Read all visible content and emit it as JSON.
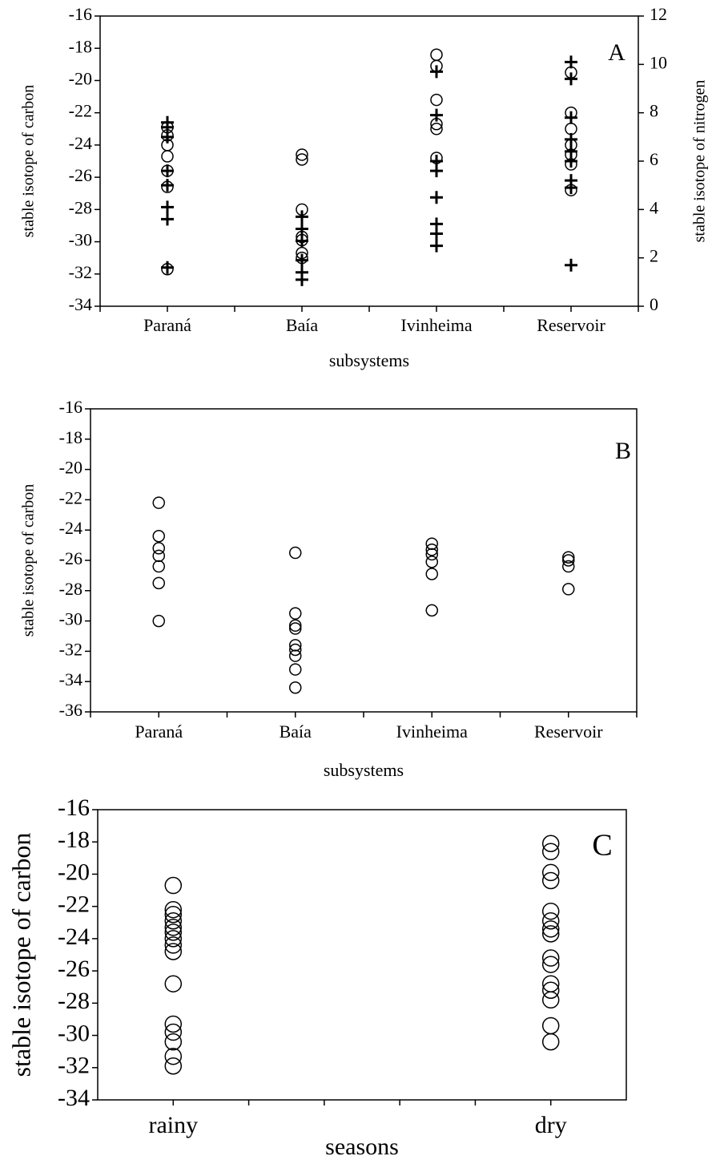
{
  "chart_data": [
    {
      "type": "strip",
      "annotation": "A",
      "xlabel": "subsystems",
      "ylabel": "stable isotope of carbon",
      "y2label": "stable isotope of nitrogen",
      "categories": [
        "Paraná",
        "Baía",
        "Ivinheima",
        "Reservoir"
      ],
      "series": [
        {
          "marker": "circle",
          "color": "#000000",
          "values": [
            [
              -22.9,
              -23.4,
              -24.0,
              -24.7,
              -25.6,
              -26.6,
              -31.7
            ],
            [
              -24.6,
              -24.9,
              -28.0,
              -29.7,
              -29.9,
              -30.7,
              -31.0
            ],
            [
              -18.4,
              -19.1,
              -21.2,
              -22.7,
              -23.0,
              -24.8
            ],
            [
              -19.5,
              -22.0,
              -23.0,
              -24.0,
              -24.6,
              -25.2,
              -26.8
            ]
          ]
        },
        {
          "marker": "plus",
          "color": "#000000",
          "axis": "y2",
          "values": [
            [
              7.6,
              7.4,
              7.0,
              5.6,
              5.0,
              4.1,
              3.6,
              1.6
            ],
            [
              3.7,
              3.2,
              2.7,
              1.9,
              1.4,
              1.1
            ],
            [
              9.7,
              7.9,
              6.0,
              5.6,
              4.5,
              3.4,
              3.0,
              2.5
            ],
            [
              10.1,
              9.4,
              7.8,
              6.9,
              6.4,
              6.0,
              5.2,
              4.9,
              1.7
            ]
          ]
        }
      ],
      "ylim": [
        -34,
        -16
      ],
      "yticks": [
        -34,
        -32,
        -30,
        -28,
        -26,
        -24,
        -22,
        -20,
        -18,
        -16
      ],
      "y2lim": [
        0,
        12
      ],
      "y2ticks": [
        0,
        2,
        4,
        6,
        8,
        10,
        12
      ]
    },
    {
      "type": "strip",
      "annotation": "B",
      "xlabel": "subsystems",
      "ylabel": "stable isotope of carbon",
      "categories": [
        "Paraná",
        "Baía",
        "Ivinheima",
        "Reservoir"
      ],
      "series": [
        {
          "marker": "circle",
          "color": "#000000",
          "values": [
            [
              -22.2,
              -24.4,
              -25.2,
              -25.7,
              -26.4,
              -27.5,
              -30.0
            ],
            [
              -25.5,
              -29.5,
              -30.3,
              -30.5,
              -31.6,
              -31.9,
              -32.3,
              -33.2,
              -34.4
            ],
            [
              -24.9,
              -25.3,
              -25.6,
              -26.1,
              -26.9,
              -29.3
            ],
            [
              -25.8,
              -26.0,
              -26.4,
              -27.9
            ]
          ]
        }
      ],
      "ylim": [
        -36,
        -16
      ],
      "yticks": [
        -36,
        -34,
        -32,
        -30,
        -28,
        -26,
        -24,
        -22,
        -20,
        -18,
        -16
      ]
    },
    {
      "type": "strip",
      "annotation": "C",
      "xlabel": "seasons",
      "ylabel": "stable isotope of carbon",
      "categories": [
        "rainy",
        "dry"
      ],
      "series": [
        {
          "marker": "circle",
          "color": "#000000",
          "values": [
            [
              -20.7,
              -22.2,
              -22.5,
              -22.9,
              -23.3,
              -23.6,
              -24.0,
              -24.4,
              -24.8,
              -26.8,
              -29.3,
              -29.8,
              -30.4,
              -31.3,
              -31.9
            ],
            [
              -18.1,
              -18.6,
              -19.9,
              -20.4,
              -22.3,
              -22.9,
              -23.4,
              -23.7,
              -25.2,
              -25.6,
              -26.8,
              -27.2,
              -27.8,
              -29.4,
              -30.4
            ]
          ]
        }
      ],
      "ylim": [
        -34,
        -16
      ],
      "yticks": [
        -34,
        -32,
        -30,
        -28,
        -26,
        -24,
        -22,
        -20,
        -18,
        -16
      ]
    }
  ]
}
